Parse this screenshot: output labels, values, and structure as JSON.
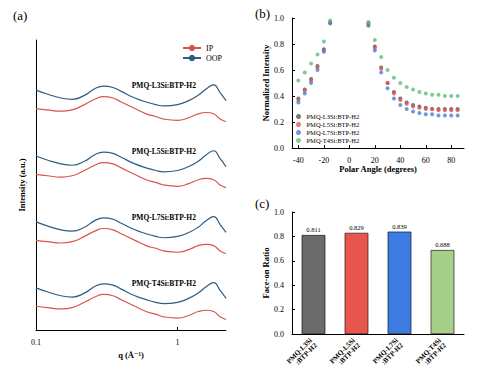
{
  "chart_data": [
    {
      "type": "line",
      "title": "(a)",
      "x_label": "q (Å⁻¹)",
      "y_label": "Intensity (a.u.)",
      "x": [
        0.1,
        0.12,
        0.15,
        0.18,
        0.22,
        0.26,
        0.3,
        0.35,
        0.4,
        0.5,
        0.6,
        0.7,
        0.8,
        1.0,
        1.2,
        1.4,
        1.6,
        1.8,
        2.0,
        2.2
      ],
      "series": [
        {
          "name": "IP",
          "color": "#d9534f"
        },
        {
          "name": "OOP",
          "color": "#2e5c82"
        }
      ],
      "samples": [
        {
          "label": "PMQ-L3Si:BTP-H2",
          "IP": [
            8.4,
            8.35,
            8.3,
            8.35,
            8.55,
            8.75,
            8.85,
            8.8,
            8.65,
            8.4,
            8.2,
            8.1,
            8.0,
            7.95,
            8.05,
            8.2,
            8.25,
            8.2,
            8.0,
            7.9
          ],
          "OOP": [
            9.1,
            8.95,
            8.8,
            8.75,
            8.9,
            9.15,
            9.25,
            9.2,
            9.05,
            8.8,
            8.65,
            8.55,
            8.5,
            8.55,
            8.7,
            8.9,
            9.15,
            9.3,
            9.0,
            8.7
          ]
        },
        {
          "label": "PMQ-L5Si:BTP-H2",
          "IP": [
            5.9,
            5.85,
            5.8,
            5.85,
            6.05,
            6.25,
            6.35,
            6.3,
            6.15,
            5.9,
            5.7,
            5.6,
            5.5,
            5.45,
            5.55,
            5.7,
            5.75,
            5.7,
            5.5,
            5.4
          ],
          "OOP": [
            6.6,
            6.45,
            6.3,
            6.25,
            6.4,
            6.65,
            6.75,
            6.7,
            6.55,
            6.3,
            6.15,
            6.05,
            6.0,
            6.05,
            6.2,
            6.4,
            6.65,
            6.8,
            6.5,
            6.2
          ]
        },
        {
          "label": "PMQ-L7Si:BTP-H2",
          "IP": [
            3.4,
            3.35,
            3.3,
            3.35,
            3.55,
            3.75,
            3.85,
            3.8,
            3.65,
            3.4,
            3.2,
            3.1,
            3.0,
            2.95,
            3.05,
            3.2,
            3.25,
            3.2,
            3.0,
            2.9
          ],
          "OOP": [
            4.1,
            3.95,
            3.8,
            3.75,
            3.9,
            4.15,
            4.25,
            4.2,
            4.05,
            3.8,
            3.65,
            3.55,
            3.5,
            3.55,
            3.7,
            3.9,
            4.15,
            4.3,
            4.0,
            3.7
          ]
        },
        {
          "label": "PMQ-T4Si:BTP-H2",
          "IP": [
            0.9,
            0.85,
            0.8,
            0.85,
            1.05,
            1.25,
            1.35,
            1.3,
            1.15,
            0.9,
            0.7,
            0.6,
            0.5,
            0.45,
            0.55,
            0.7,
            0.75,
            0.7,
            0.5,
            0.4
          ],
          "OOP": [
            1.6,
            1.45,
            1.3,
            1.25,
            1.4,
            1.65,
            1.75,
            1.7,
            1.55,
            1.3,
            1.15,
            1.05,
            1.0,
            1.05,
            1.2,
            1.4,
            1.65,
            1.8,
            1.5,
            1.2
          ]
        }
      ],
      "xlim": [
        0.1,
        2.2
      ],
      "xticks": [
        0.1,
        1
      ],
      "ylim": [
        0,
        11
      ],
      "log": "x",
      "tick_labels": "x",
      "legend": "upper right",
      "grid": false
    },
    {
      "type": "scatter",
      "title": "(b)",
      "x_label": "Polar Angle (degrees)",
      "y_label": "Normalized Intensity",
      "x": [
        -40,
        -35,
        -30,
        -25,
        -20,
        -15,
        15,
        20,
        25,
        30,
        35,
        40,
        45,
        50,
        55,
        60,
        65,
        70,
        75,
        80,
        85
      ],
      "series": [
        {
          "name": "PMQ-L3Si:BTP-H2",
          "color": "#555555",
          "values": [
            0.38,
            0.45,
            0.53,
            0.63,
            0.76,
            0.97,
            0.96,
            0.78,
            0.62,
            0.5,
            0.43,
            0.38,
            0.35,
            0.33,
            0.32,
            0.31,
            0.3,
            0.3,
            0.3,
            0.3,
            0.3
          ]
        },
        {
          "name": "PMQ-L5Si:BTP-H2",
          "color": "#e4574f",
          "values": [
            0.37,
            0.44,
            0.52,
            0.62,
            0.75,
            0.96,
            0.95,
            0.77,
            0.61,
            0.5,
            0.42,
            0.37,
            0.34,
            0.32,
            0.31,
            0.3,
            0.3,
            0.29,
            0.29,
            0.29,
            0.29
          ]
        },
        {
          "name": "PMQ-L7Si:BTP-H2",
          "color": "#4a7fd6",
          "values": [
            0.35,
            0.42,
            0.5,
            0.6,
            0.74,
            0.96,
            0.94,
            0.75,
            0.58,
            0.46,
            0.38,
            0.33,
            0.3,
            0.28,
            0.27,
            0.26,
            0.26,
            0.25,
            0.25,
            0.25,
            0.25
          ]
        },
        {
          "name": "PMQ-T4Si:BTP-H2",
          "color": "#5cbf7a",
          "values": [
            0.52,
            0.58,
            0.65,
            0.72,
            0.82,
            0.98,
            0.97,
            0.83,
            0.7,
            0.6,
            0.54,
            0.5,
            0.47,
            0.45,
            0.43,
            0.42,
            0.41,
            0.41,
            0.4,
            0.4,
            0.4
          ]
        }
      ],
      "marker": "circle",
      "xlim": [
        -45,
        90
      ],
      "xticks": [
        -40,
        -20,
        0,
        20,
        40,
        60,
        80
      ],
      "ylim": [
        0,
        1
      ],
      "yticks": [
        {
          "value": 0,
          "label": "0.0"
        },
        0.2,
        0.4,
        0.6,
        0.8,
        {
          "value": 1,
          "label": "1.0"
        }
      ],
      "legend": "lower left",
      "grid": false
    },
    {
      "type": "bar",
      "title": "(c)",
      "y_label": "Face-on Ratio",
      "categories": [
        "PMQ-L3Si:BTP-H2",
        "PMQ-L5Si:BTP-H2",
        "PMQ-L7Si:BTP-H2",
        "PMQ-T4Si:BTP-H2"
      ],
      "values": [
        0.811,
        0.829,
        0.839,
        0.688
      ],
      "colors": [
        "#6b6b6b",
        "#e8554e",
        "#3c7be0",
        "#a6d08a"
      ],
      "ylim": [
        0,
        1
      ],
      "yticks": [
        {
          "value": 0,
          "label": "0.0"
        },
        0.2,
        0.4,
        0.6,
        0.8,
        {
          "value": 1,
          "label": "1.0"
        }
      ],
      "data_labels": true,
      "grid": false
    }
  ]
}
